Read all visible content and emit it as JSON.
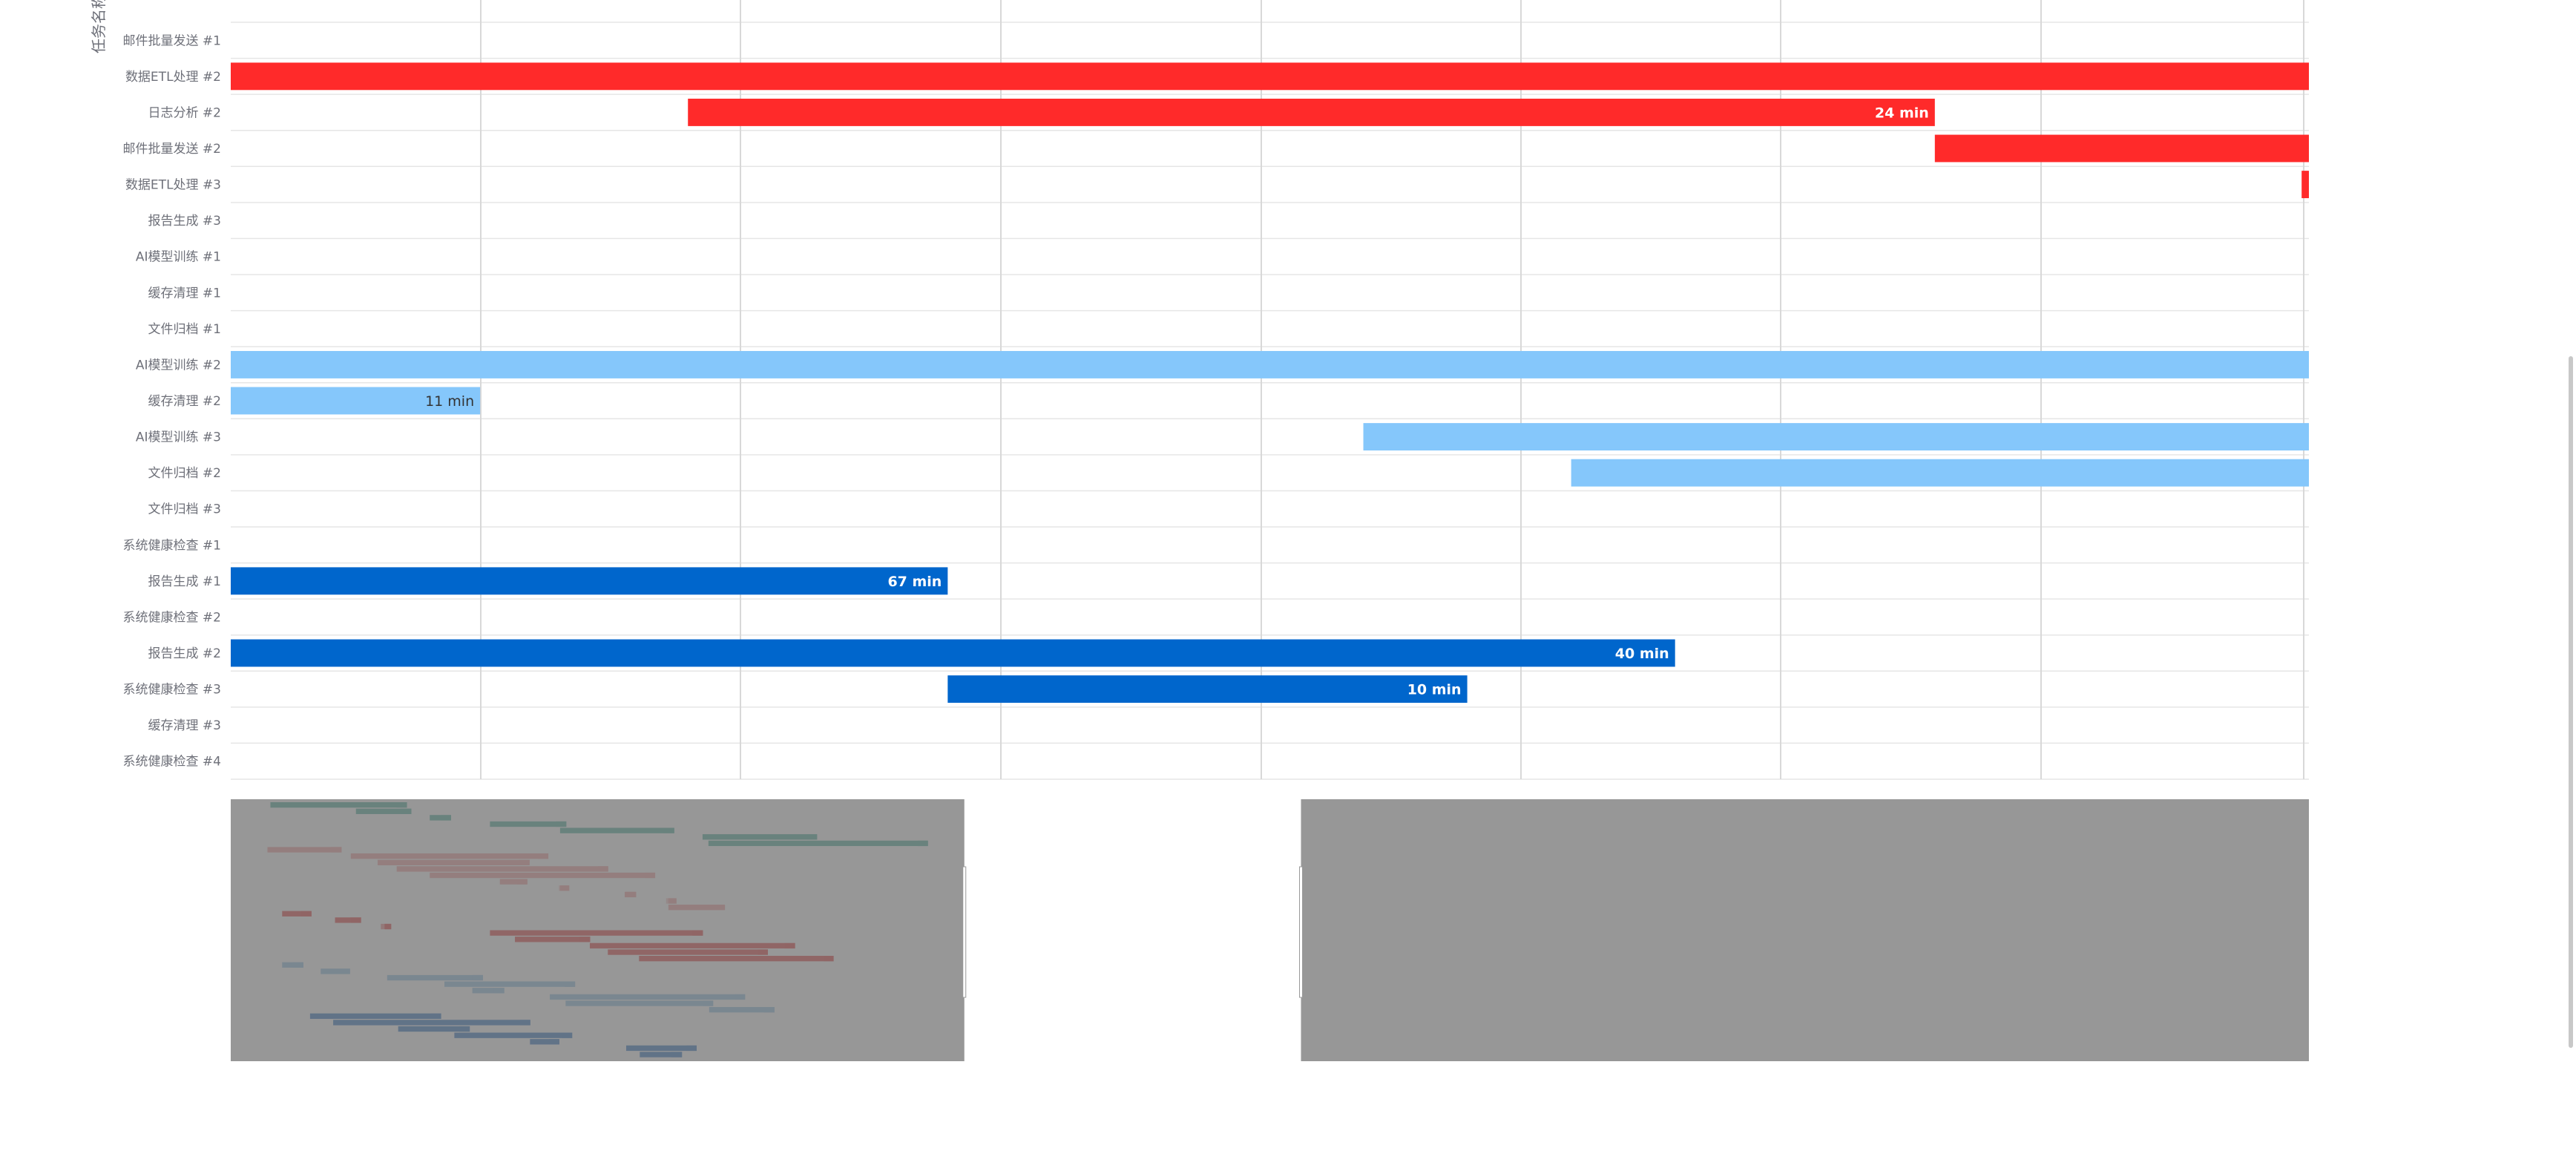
{
  "chart_data": {
    "type": "gantt",
    "yaxis_name": "任务名称",
    "view_range": [
      0,
      200
    ],
    "rows": [
      {
        "label": "邮件批量发送 #1",
        "start": null,
        "end": null,
        "color": "#ff2a2a",
        "label_text": ""
      },
      {
        "label": "数据ETL处理 #2",
        "start": 0,
        "end": 200,
        "color": "#ff2a2a",
        "label_text": ""
      },
      {
        "label": "日志分析 #2",
        "start": 44,
        "end": 164,
        "color": "#ff2a2a",
        "label_text": "24 min"
      },
      {
        "label": "邮件批量发送 #2",
        "start": 164,
        "end": 200,
        "color": "#ff2a2a",
        "label_text": ""
      },
      {
        "label": "数据ETL处理 #3",
        "start": 199.3,
        "end": 200,
        "color": "#ff2a2a",
        "label_text": ""
      },
      {
        "label": "报告生成 #3",
        "start": null,
        "end": null,
        "color": "#ff2a2a",
        "label_text": ""
      },
      {
        "label": "AI模型训练 #1",
        "start": null,
        "end": null,
        "color": "#85c7fb",
        "label_text": ""
      },
      {
        "label": "缓存清理 #1",
        "start": null,
        "end": null,
        "color": "#85c7fb",
        "label_text": ""
      },
      {
        "label": "文件归档 #1",
        "start": null,
        "end": null,
        "color": "#85c7fb",
        "label_text": ""
      },
      {
        "label": "AI模型训练 #2",
        "start": 0,
        "end": 200,
        "color": "#85c7fb",
        "label_text": ""
      },
      {
        "label": "缓存清理 #2",
        "start": 0,
        "end": 24,
        "color": "#85c7fb",
        "label_text": "11 min"
      },
      {
        "label": "AI模型训练 #3",
        "start": 109,
        "end": 200,
        "color": "#85c7fb",
        "label_text": ""
      },
      {
        "label": "文件归档 #2",
        "start": 129,
        "end": 200,
        "color": "#85c7fb",
        "label_text": ""
      },
      {
        "label": "文件归档 #3",
        "start": null,
        "end": null,
        "color": "#85c7fb",
        "label_text": ""
      },
      {
        "label": "系统健康检查 #1",
        "start": null,
        "end": null,
        "color": "#0066cc",
        "label_text": ""
      },
      {
        "label": "报告生成 #1",
        "start": 0,
        "end": 69,
        "color": "#0066cc",
        "label_text": "67 min"
      },
      {
        "label": "系统健康检查 #2",
        "start": null,
        "end": null,
        "color": "#0066cc",
        "label_text": ""
      },
      {
        "label": "报告生成 #2",
        "start": 0,
        "end": 139,
        "color": "#0066cc",
        "label_text": "40 min"
      },
      {
        "label": "系统健康检查 #3",
        "start": 69,
        "end": 119,
        "color": "#0066cc",
        "label_text": "10 min"
      },
      {
        "label": "缓存清理 #3",
        "start": null,
        "end": null,
        "color": "#0066cc",
        "label_text": ""
      },
      {
        "label": "系统健康检查 #4",
        "start": null,
        "end": null,
        "color": "#0066cc",
        "label_text": ""
      }
    ],
    "grid": true,
    "legend": "none",
    "zoom_window": [
      0.353,
      0.515
    ],
    "overview_range": [
      0,
      566
    ],
    "overview_rows": [
      {
        "start": 10.8,
        "end": 48,
        "color": "#2e9e8a"
      },
      {
        "start": 34.1,
        "end": 49.2,
        "color": "#2e9e8a"
      },
      {
        "start": 54.2,
        "end": 60,
        "color": "#2e9e8a"
      },
      {
        "start": 70.6,
        "end": 91.4,
        "color": "#2e9e8a"
      },
      {
        "start": 89.7,
        "end": 120.8,
        "color": "#2e9e8a"
      },
      {
        "start": 128.5,
        "end": 159.7,
        "color": "#2e9e8a"
      },
      {
        "start": 130.1,
        "end": 189.9,
        "color": "#2e9e8a"
      },
      {
        "start": 10,
        "end": 30.2,
        "color": "#f08c8c"
      },
      {
        "start": 32.7,
        "end": 86.5,
        "color": "#f08c8c"
      },
      {
        "start": 40,
        "end": 81.4,
        "color": "#f08c8c"
      },
      {
        "start": 45.2,
        "end": 102.8,
        "color": "#f08c8c"
      },
      {
        "start": 54.2,
        "end": 115.6,
        "color": "#f08c8c"
      },
      {
        "start": 73.3,
        "end": 80.8,
        "color": "#f08c8c"
      },
      {
        "start": 89.7,
        "end": 92.2,
        "color": "#f08c8c"
      },
      {
        "start": 107.3,
        "end": 110.4,
        "color": "#f08c8c"
      },
      {
        "start": 119.2,
        "end": 121.4,
        "color": "#f08c8c"
      },
      {
        "start": 119.2,
        "end": 134.6,
        "color": "#f08c8c"
      },
      {
        "start": 14,
        "end": 22,
        "color": "#e02020"
      },
      {
        "start": 28.4,
        "end": 35.5,
        "color": "#e02020"
      },
      {
        "start": 41.9,
        "end": 43.7,
        "color": "#e02020"
      },
      {
        "start": 70.6,
        "end": 128.6,
        "color": "#e02020"
      },
      {
        "start": 77.4,
        "end": 97.9,
        "color": "#e02020"
      },
      {
        "start": 97.8,
        "end": 153.7,
        "color": "#e02020"
      },
      {
        "start": 102.7,
        "end": 146.3,
        "color": "#e02020"
      },
      {
        "start": 111.2,
        "end": 164.2,
        "color": "#e02020"
      },
      {
        "start": 14,
        "end": 19.8,
        "color": "#7db4e0"
      },
      {
        "start": 24.5,
        "end": 32.5,
        "color": "#7db4e0"
      },
      {
        "start": 42.6,
        "end": 68.7,
        "color": "#7db4e0"
      },
      {
        "start": 58.2,
        "end": 93.8,
        "color": "#7db4e0"
      },
      {
        "start": 65.8,
        "end": 74.5,
        "color": "#7db4e0"
      },
      {
        "start": 86.9,
        "end": 140.1,
        "color": "#7db4e0"
      },
      {
        "start": 91.2,
        "end": 131.4,
        "color": "#7db4e0"
      },
      {
        "start": 130.3,
        "end": 148.1,
        "color": "#7db4e0"
      },
      {
        "start": 21.6,
        "end": 57.3,
        "color": "#0a5cb8"
      },
      {
        "start": 27.9,
        "end": 81.6,
        "color": "#0a5cb8"
      },
      {
        "start": 45.6,
        "end": 65.1,
        "color": "#0a5cb8"
      },
      {
        "start": 60.9,
        "end": 93,
        "color": "#0a5cb8"
      },
      {
        "start": 81.5,
        "end": 89.5,
        "color": "#0a5cb8"
      },
      {
        "start": 107.7,
        "end": 126.9,
        "color": "#0a5cb8"
      },
      {
        "start": 111.4,
        "end": 122.9,
        "color": "#0a5cb8"
      }
    ]
  }
}
